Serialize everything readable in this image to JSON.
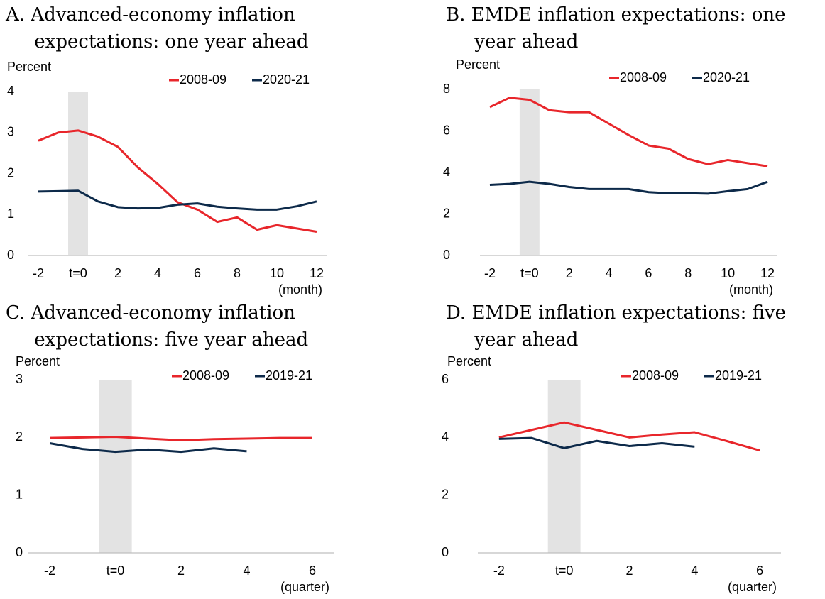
{
  "chart_data": [
    {
      "type": "line",
      "title": "A. Advanced-economy inflation expectations: one year ahead",
      "y_label": "Percent",
      "x_label": "(month)",
      "x": [
        -2,
        -1,
        0,
        1,
        2,
        3,
        4,
        5,
        6,
        7,
        8,
        9,
        10,
        11,
        12
      ],
      "series": [
        {
          "name": "2008-09",
          "color": "#e8262b",
          "values": [
            2.8,
            3.0,
            3.05,
            2.9,
            2.65,
            2.15,
            1.75,
            1.3,
            1.12,
            0.82,
            0.93,
            0.63,
            0.74,
            0.66,
            0.58
          ]
        },
        {
          "name": "2020-21",
          "color": "#0d2a4a",
          "values": [
            1.56,
            1.57,
            1.58,
            1.32,
            1.18,
            1.15,
            1.16,
            1.24,
            1.27,
            1.19,
            1.15,
            1.12,
            1.12,
            1.2,
            1.32
          ]
        }
      ],
      "shade": [
        -0.5,
        0.5
      ],
      "xlim": [
        -2.5,
        12.5
      ],
      "xticks": [
        -2,
        {
          "value": 0,
          "label": "t=0"
        },
        2,
        4,
        6,
        8,
        10,
        12
      ],
      "ylim": [
        0,
        4
      ],
      "yticks": [
        0,
        1,
        2,
        3,
        4
      ]
    },
    {
      "type": "line",
      "title": "B. EMDE inflation expectations: one year ahead",
      "y_label": "Percent",
      "x_label": "(month)",
      "x": [
        -2,
        -1,
        0,
        1,
        2,
        3,
        4,
        5,
        6,
        7,
        8,
        9,
        10,
        11,
        12
      ],
      "series": [
        {
          "name": "2008-09",
          "color": "#e8262b",
          "values": [
            7.15,
            7.6,
            7.5,
            7.0,
            6.9,
            6.9,
            6.35,
            5.8,
            5.3,
            5.15,
            4.65,
            4.4,
            4.6,
            4.45,
            4.3
          ]
        },
        {
          "name": "2020-21",
          "color": "#0d2a4a",
          "values": [
            3.4,
            3.45,
            3.55,
            3.45,
            3.3,
            3.2,
            3.2,
            3.2,
            3.05,
            3.0,
            3.0,
            2.98,
            3.1,
            3.2,
            3.55
          ]
        }
      ],
      "shade": [
        -0.5,
        0.5
      ],
      "xlim": [
        -2.5,
        12.5
      ],
      "xticks": [
        -2,
        {
          "value": 0,
          "label": "t=0"
        },
        2,
        4,
        6,
        8,
        10,
        12
      ],
      "ylim": [
        0,
        8
      ],
      "yticks": [
        0,
        2,
        4,
        6,
        8
      ]
    },
    {
      "type": "line",
      "title": "C. Advanced-economy inflation expectations: five year ahead",
      "y_label": "Percent",
      "x_label": "(quarter)",
      "x": [
        -2,
        -1,
        0,
        1,
        2,
        3,
        4,
        5,
        6
      ],
      "series": [
        {
          "name": "2008-09",
          "color": "#e8262b",
          "values": [
            1.99,
            2.0,
            2.01,
            1.98,
            1.95,
            1.97,
            1.98,
            1.99,
            1.99
          ]
        },
        {
          "name": "2019-21",
          "color": "#0d2a4a",
          "values": [
            1.9,
            1.8,
            1.75,
            1.79,
            1.75,
            1.81,
            1.76,
            null,
            null
          ]
        }
      ],
      "shade": [
        -0.5,
        0.5
      ],
      "xlim": [
        -2.65,
        6.65
      ],
      "xticks": [
        -2,
        {
          "value": 0,
          "label": "t=0"
        },
        2,
        4,
        6
      ],
      "ylim": [
        0,
        3
      ],
      "yticks": [
        0,
        1,
        2,
        3
      ]
    },
    {
      "type": "line",
      "title": "D. EMDE inflation expectations: five year ahead",
      "y_label": "Percent",
      "x_label": "(quarter)",
      "x": [
        -2,
        -1,
        0,
        1,
        2,
        3,
        4,
        5,
        6
      ],
      "series": [
        {
          "name": "2008-09",
          "color": "#e8262b",
          "values": [
            4.0,
            4.26,
            4.52,
            4.26,
            4.0,
            4.1,
            4.18,
            3.87,
            3.55
          ]
        },
        {
          "name": "2019-21",
          "color": "#0d2a4a",
          "values": [
            3.95,
            3.98,
            3.63,
            3.88,
            3.7,
            3.8,
            3.68,
            null,
            null
          ]
        }
      ],
      "shade": [
        -0.5,
        0.5
      ],
      "xlim": [
        -2.65,
        6.65
      ],
      "xticks": [
        -2,
        {
          "value": 0,
          "label": "t=0"
        },
        2,
        4,
        6
      ],
      "ylim": [
        0,
        6
      ],
      "yticks": [
        0,
        2,
        4,
        6
      ]
    }
  ]
}
